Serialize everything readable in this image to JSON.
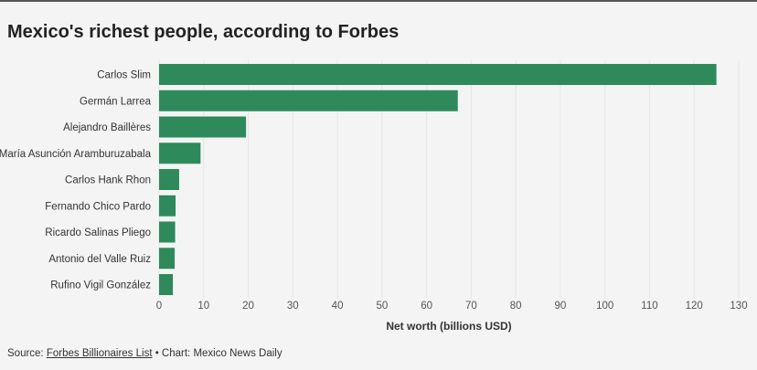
{
  "title": "Mexico's richest people, according to Forbes",
  "source": {
    "prefix": "Source: ",
    "link": "Forbes Billionaires List",
    "suffix": " • Chart: Mexico News Daily"
  },
  "chart_data": {
    "type": "bar",
    "orientation": "horizontal",
    "title": "Mexico's richest people, according to Forbes",
    "xlabel": "Net worth (billions USD)",
    "ylabel": "",
    "xlim": [
      0,
      130
    ],
    "xticks": [
      0,
      10,
      20,
      30,
      40,
      50,
      60,
      70,
      80,
      90,
      100,
      110,
      120,
      130
    ],
    "grid": true,
    "bar_color": "#2e8a5b",
    "categories": [
      "Carlos Slim",
      "Germán Larrea",
      "Alejandro Baillères",
      "María Asunción Aramburuzabala",
      "Carlos Hank Rhon",
      "Fernando Chico Pardo",
      "Ricardo Salinas Pliego",
      "Antonio del Valle Ruiz",
      "Rufino Vigil González"
    ],
    "values": [
      125,
      67,
      19.5,
      9.3,
      4.5,
      3.7,
      3.6,
      3.5,
      3.1
    ]
  }
}
